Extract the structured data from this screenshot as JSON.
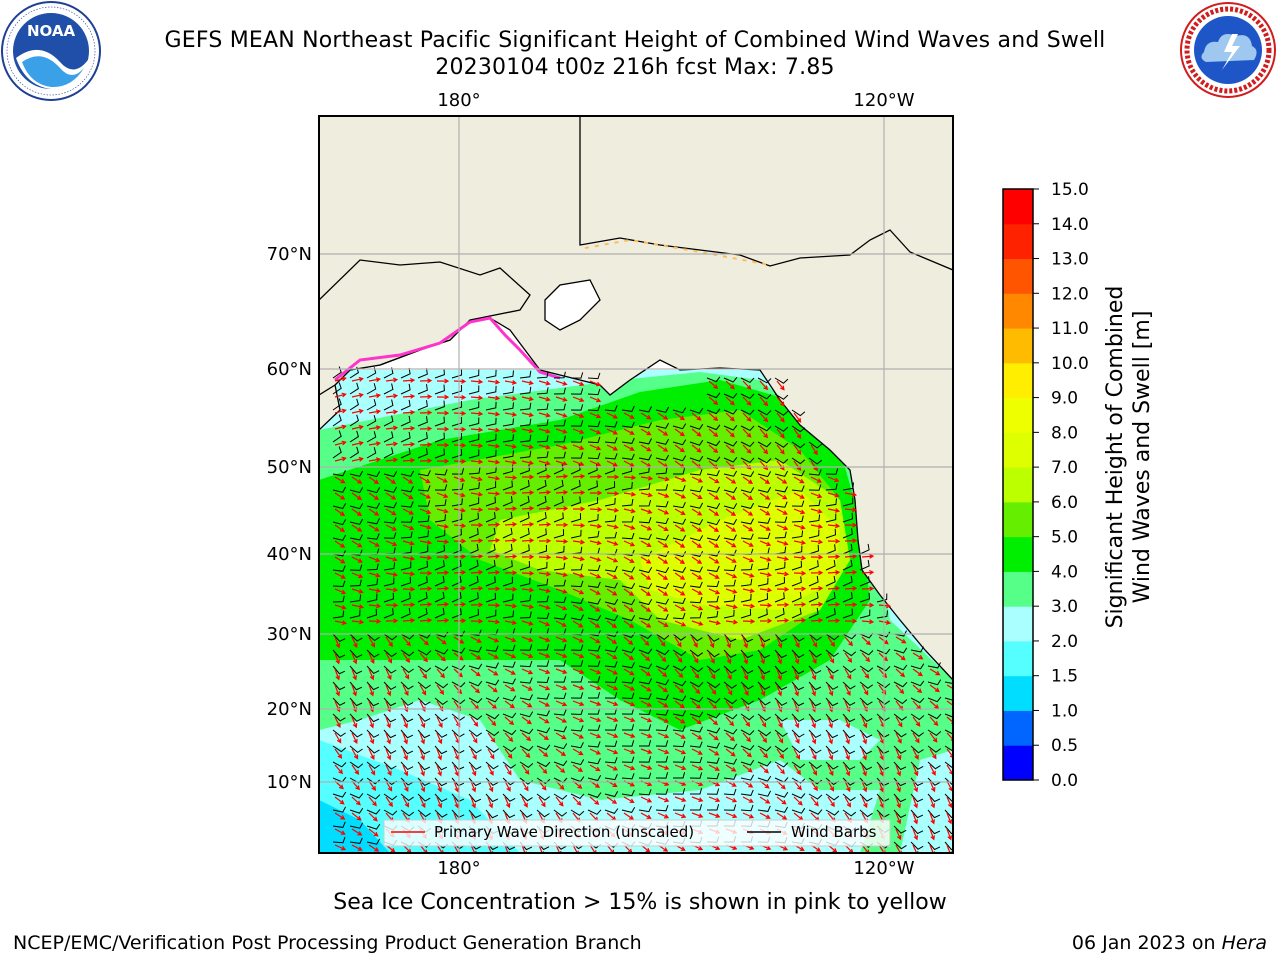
{
  "header": {
    "title_line1": "GEFS MEAN Northeast Pacific Significant Height of Combined Wind Waves and Swell",
    "title_line2": "20230104 t00z 216h fcst   Max: 7.85"
  },
  "logos": {
    "left": {
      "icon": "noaa-logo",
      "text": "NOAA",
      "ring_text": "NATIONAL OCEANIC AND ATMOSPHERIC ADMINISTRATION · U.S. DEPARTMENT OF COMMERCE"
    },
    "right": {
      "icon": "nws-logo",
      "ring_text": "NATIONAL WEATHER SERVICE"
    }
  },
  "map": {
    "lon_labels": [
      "180°",
      "120°W"
    ],
    "lat_labels": [
      "70°N",
      "60°N",
      "50°N",
      "40°N",
      "30°N",
      "20°N",
      "10°N"
    ],
    "colors": {
      "land": "#efedde",
      "grid": "#b0b0b0",
      "wave_arrow": "#ff0000",
      "barb": "#000000"
    }
  },
  "legend": {
    "items": [
      {
        "label": "Primary Wave Direction (unscaled)",
        "color": "#ff0000"
      },
      {
        "label": "Wind Barbs",
        "color": "#000000"
      }
    ]
  },
  "colorbar": {
    "label_line1": "Significant Height of Combined",
    "label_line2": "Wind Waves and Swell [m]",
    "ticks": [
      "15.0",
      "14.0",
      "13.0",
      "12.0",
      "11.0",
      "10.0",
      "9.0",
      "8.0",
      "7.0",
      "6.0",
      "5.0",
      "4.0",
      "3.0",
      "2.0",
      "1.5",
      "1.0",
      "0.5",
      "0.0"
    ],
    "colors_bottom_to_top": [
      "#0000ff",
      "#0066ff",
      "#00ddff",
      "#55ffff",
      "#aaffff",
      "#55ff88",
      "#00ee00",
      "#66ee00",
      "#bbff00",
      "#ddff00",
      "#eeff00",
      "#ffee00",
      "#ffbb00",
      "#ff8800",
      "#ff5500",
      "#ff2200",
      "#ff0000"
    ]
  },
  "footer": {
    "ice_note": "Sea Ice Concentration > 15% is shown in pink to yellow",
    "left": "NCEP/EMC/Verification Post Processing Product Generation Branch",
    "right_prefix": "06 Jan 2023 on ",
    "right_host": "Hera"
  }
}
